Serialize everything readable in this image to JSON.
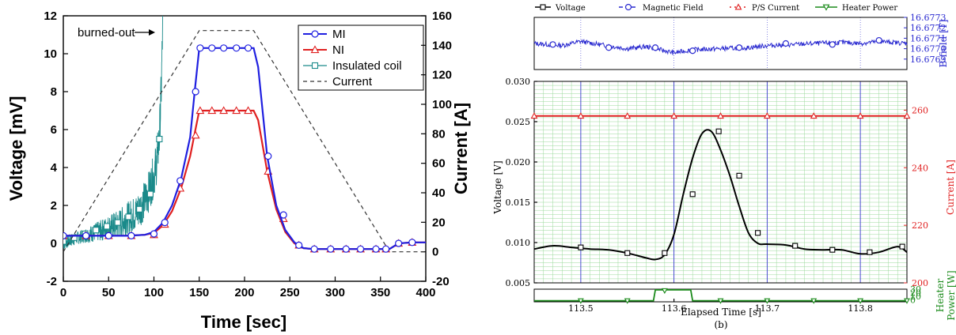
{
  "colors": {
    "mi": "#1f1fe0",
    "ni": "#e02020",
    "coil": "#1a8a8a",
    "current_dashed": "#333333",
    "voltage": "#000000",
    "bfield": "#2a2ad0",
    "ps_current": "#e02020",
    "heater": "#1a8a1a",
    "grid_minor": "#9bd99b",
    "grid_major": "#3a3ad0"
  },
  "chart_data": [
    {
      "type": "line",
      "xlabel": "Time [sec]",
      "ylabel": "Voltage [mV]",
      "y2label": "Current [A]",
      "xlim": [
        0,
        400
      ],
      "ylim": [
        -2,
        12
      ],
      "y2lim": [
        -20,
        160
      ],
      "xticks": [
        0,
        50,
        100,
        150,
        200,
        250,
        300,
        350,
        400
      ],
      "yticks": [
        -2,
        0,
        2,
        4,
        6,
        8,
        10,
        12
      ],
      "y2ticks": [
        -20,
        0,
        20,
        40,
        60,
        80,
        100,
        120,
        140,
        160
      ],
      "legend_position": "top-right",
      "annotation": "burned-out",
      "series": [
        {
          "name": "MI",
          "marker": "circle",
          "x": [
            0,
            15,
            30,
            50,
            70,
            90,
            100,
            110,
            120,
            130,
            140,
            145,
            150,
            165,
            180,
            195,
            210,
            215,
            225,
            235,
            245,
            255,
            265,
            275,
            290,
            305,
            320,
            335,
            350,
            360,
            370,
            385,
            400
          ],
          "y": [
            0.4,
            0.4,
            0.4,
            0.4,
            0.4,
            0.45,
            0.6,
            1.1,
            2.0,
            3.4,
            5.6,
            8.0,
            10.3,
            10.3,
            10.3,
            10.3,
            10.3,
            9.3,
            4.6,
            2.0,
            0.7,
            0.05,
            -0.25,
            -0.3,
            -0.3,
            -0.3,
            -0.3,
            -0.3,
            -0.3,
            -0.3,
            0.0,
            0.05,
            0.05
          ],
          "marker_x": [
            0,
            25,
            50,
            75,
            100,
            112,
            129,
            146,
            151,
            164,
            177,
            191,
            204,
            226,
            243,
            260,
            277,
            295,
            312,
            328,
            345,
            356,
            370,
            385
          ],
          "marker_y": [
            0.4,
            0.4,
            0.4,
            0.4,
            0.5,
            1.1,
            3.3,
            8.0,
            10.3,
            10.3,
            10.3,
            10.3,
            10.3,
            4.6,
            1.5,
            -0.1,
            -0.3,
            -0.3,
            -0.3,
            -0.3,
            -0.3,
            -0.3,
            0.0,
            0.05
          ]
        },
        {
          "name": "NI",
          "marker": "triangle",
          "x": [
            0,
            15,
            30,
            50,
            70,
            90,
            100,
            110,
            120,
            130,
            140,
            145,
            150,
            165,
            180,
            195,
            210,
            215,
            225,
            235,
            245,
            255,
            265,
            275,
            290,
            305,
            320,
            335,
            350,
            360,
            370,
            385,
            400
          ],
          "y": [
            0.4,
            0.4,
            0.4,
            0.4,
            0.4,
            0.45,
            0.55,
            0.95,
            1.7,
            2.9,
            4.6,
            5.8,
            7.0,
            7.0,
            7.0,
            7.0,
            7.0,
            6.5,
            3.8,
            1.8,
            0.6,
            0.0,
            -0.25,
            -0.3,
            -0.3,
            -0.3,
            -0.3,
            -0.3,
            -0.3,
            -0.3,
            0.0,
            0.05,
            0.05
          ],
          "marker_x": [
            0,
            25,
            50,
            75,
            100,
            112,
            129,
            146,
            151,
            164,
            177,
            191,
            204,
            226,
            243,
            260,
            277,
            295,
            312,
            328,
            345,
            356,
            370,
            385
          ],
          "marker_y": [
            0.4,
            0.4,
            0.4,
            0.4,
            0.45,
            1.0,
            2.9,
            5.7,
            7.0,
            7.0,
            7.0,
            7.0,
            7.0,
            3.8,
            1.3,
            -0.1,
            -0.3,
            -0.3,
            -0.3,
            -0.3,
            -0.3,
            -0.3,
            0.0,
            0.05
          ]
        },
        {
          "name": "Insulated coil",
          "marker": "square",
          "x": [
            0,
            10,
            20,
            30,
            40,
            50,
            60,
            70,
            80,
            85,
            90,
            95,
            100,
            103,
            106,
            108,
            110
          ],
          "y": [
            0.0,
            0.2,
            0.35,
            0.5,
            0.65,
            0.85,
            1.0,
            1.3,
            1.6,
            1.9,
            2.3,
            2.8,
            3.6,
            4.3,
            5.5,
            8.0,
            12.0
          ],
          "marker_x": [
            0,
            12,
            24,
            36,
            48,
            60,
            72,
            84,
            96,
            106
          ],
          "marker_y": [
            0.1,
            0.3,
            0.5,
            0.7,
            0.9,
            1.1,
            1.4,
            1.8,
            2.6,
            5.5
          ]
        },
        {
          "name": "Current",
          "axis": "right",
          "line": "dashed",
          "x": [
            0,
            150,
            210,
            360,
            400
          ],
          "y": [
            0,
            150,
            150,
            0,
            0
          ]
        }
      ]
    },
    {
      "type": "line",
      "xlabel": "Elapsed Time [s]",
      "caption": "(b)",
      "xlim": [
        113.45,
        113.85
      ],
      "xticks": [
        113.5,
        113.6,
        113.7,
        113.8
      ],
      "legend_position": "top",
      "legend": [
        "Voltage",
        "Magnetic Field",
        "P/S Current",
        "Heater Power"
      ],
      "panels": [
        {
          "name": "B-field",
          "ylabel": "B-field [T]",
          "ylim": [
            16.6768,
            16.6773
          ],
          "yticks": [
            16.6769,
            16.677,
            16.6771,
            16.6772,
            16.6773
          ],
          "ytick_labels": [
            "16.6769",
            "16.6770",
            "16.6771",
            "16.6772",
            "16.6773"
          ],
          "series": [
            {
              "name": "Magnetic Field",
              "x": [
                113.45,
                113.48,
                113.5,
                113.52,
                113.55,
                113.57,
                113.6,
                113.62,
                113.65,
                113.68,
                113.7,
                113.73,
                113.75,
                113.78,
                113.8,
                113.82,
                113.85
              ],
              "y": [
                16.67705,
                16.67703,
                16.67707,
                16.67704,
                16.677,
                16.67702,
                16.67696,
                16.67699,
                16.677,
                16.67701,
                16.67703,
                16.67704,
                16.67705,
                16.67706,
                16.67705,
                16.67707,
                16.67705
              ],
              "marker_x": [
                113.47,
                113.53,
                113.58,
                113.62,
                113.67,
                113.72,
                113.77,
                113.82
              ],
              "marker_y": [
                16.67704,
                16.67701,
                16.67701,
                16.67698,
                16.67701,
                16.67705,
                16.67704,
                16.67708
              ]
            }
          ]
        },
        {
          "name": "main",
          "ylabel": "Voltage [V]",
          "ylim": [
            0.005,
            0.03
          ],
          "yticks": [
            0.005,
            0.01,
            0.015,
            0.02,
            0.025,
            0.03
          ],
          "ytick_labels": [
            "0.005",
            "0.010",
            "0.015",
            "0.020",
            "0.025",
            "0.030"
          ],
          "y2label": "Current [A]",
          "y2lim": [
            200,
            270
          ],
          "y2ticks": [
            200,
            220,
            240,
            260
          ],
          "series": [
            {
              "name": "Voltage",
              "x": [
                113.45,
                113.47,
                113.49,
                113.51,
                113.53,
                113.55,
                113.57,
                113.58,
                113.59,
                113.6,
                113.61,
                113.62,
                113.63,
                113.64,
                113.65,
                113.66,
                113.67,
                113.68,
                113.69,
                113.7,
                113.72,
                113.74,
                113.76,
                113.78,
                113.8,
                113.82,
                113.84,
                113.85
              ],
              "y": [
                0.0092,
                0.0096,
                0.0094,
                0.0092,
                0.0091,
                0.0087,
                0.0081,
                0.0079,
                0.0085,
                0.011,
                0.016,
                0.0205,
                0.0235,
                0.0238,
                0.0215,
                0.0183,
                0.0145,
                0.0112,
                0.0099,
                0.0098,
                0.0097,
                0.0092,
                0.0091,
                0.0091,
                0.0086,
                0.0088,
                0.0095,
                0.0088
              ],
              "marker_x": [
                113.5,
                113.55,
                113.59,
                113.62,
                113.648,
                113.67,
                113.69,
                113.73,
                113.77,
                113.81,
                113.845
              ],
              "marker_y": [
                0.0094,
                0.0087,
                0.0087,
                0.016,
                0.0238,
                0.0183,
                0.0112,
                0.0096,
                0.0091,
                0.0088,
                0.0095
              ]
            },
            {
              "name": "P/S Current",
              "axis": "right",
              "x": [
                113.45,
                113.85
              ],
              "y": [
                258,
                258
              ],
              "marker_x": [
                113.45,
                113.5,
                113.55,
                113.6,
                113.65,
                113.7,
                113.75,
                113.8,
                113.85
              ],
              "marker_y": [
                258,
                258,
                258,
                258,
                258,
                258,
                258,
                258,
                258
              ]
            }
          ]
        },
        {
          "name": "heater",
          "y2label_lines": [
            "Heater",
            "Power [W]"
          ],
          "y2lim": [
            -3,
            32
          ],
          "y2ticks": [
            0,
            10,
            20,
            30
          ],
          "series": [
            {
              "name": "Heater Power",
              "x": [
                113.45,
                113.578,
                113.58,
                113.618,
                113.62,
                113.85
              ],
              "y": [
                0,
                0,
                30,
                30,
                0,
                0
              ],
              "marker_x": [
                113.5,
                113.55,
                113.59,
                113.65,
                113.7,
                113.75,
                113.8,
                113.85
              ],
              "marker_y": [
                0,
                0,
                28,
                0,
                0,
                0,
                0,
                0
              ]
            }
          ]
        }
      ]
    }
  ]
}
